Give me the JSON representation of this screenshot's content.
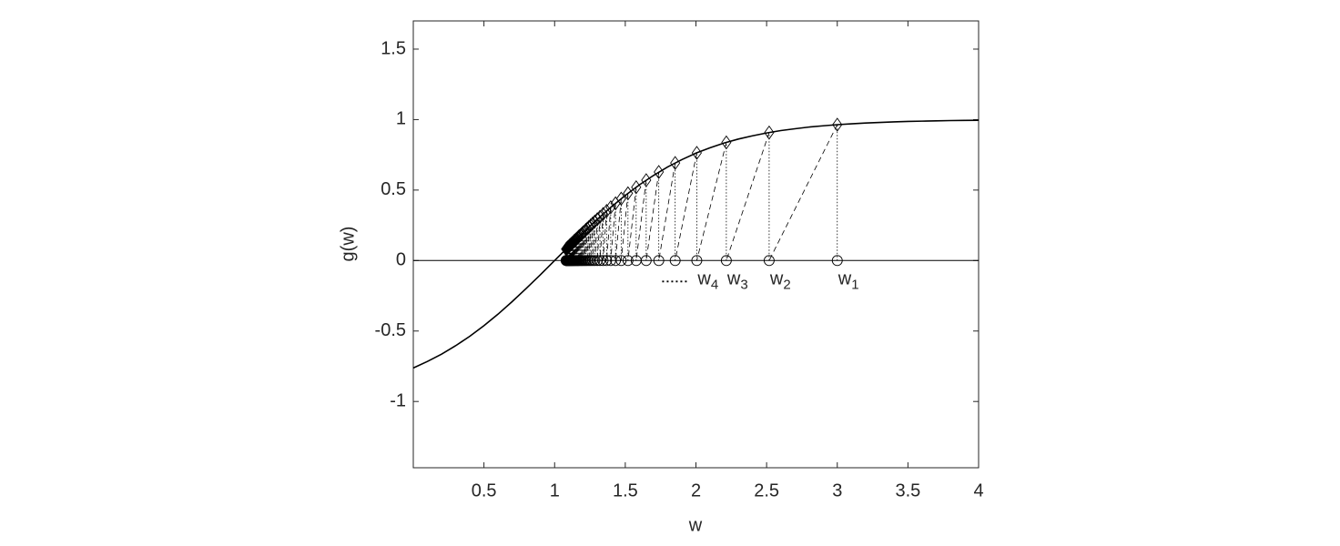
{
  "chart_data": {
    "type": "line",
    "xlabel": "w",
    "ylabel": "g(w)",
    "xlim": [
      0,
      4
    ],
    "ylim": [
      -1.47,
      1.7
    ],
    "xticks": [
      0.5,
      1,
      1.5,
      2,
      2.5,
      3,
      3.5,
      4
    ],
    "yticks": [
      -1,
      -0.5,
      0,
      0.5,
      1,
      1.5
    ],
    "hline": 0,
    "color": "#000000",
    "curve": {
      "x": [
        0,
        0.1,
        0.2,
        0.3,
        0.4,
        0.5,
        0.6,
        0.7,
        0.8,
        0.9,
        1,
        1.1,
        1.2,
        1.3,
        1.4,
        1.5,
        1.6,
        1.7,
        1.8,
        1.9,
        2,
        2.1,
        2.2,
        2.3,
        2.4,
        2.5,
        2.6,
        2.7,
        2.8,
        2.9,
        3,
        3.1,
        3.2,
        3.3,
        3.4,
        3.5,
        3.6,
        3.7,
        3.8,
        3.9,
        4
      ],
      "y": [
        -0.762,
        -0.716,
        -0.664,
        -0.604,
        -0.537,
        -0.462,
        -0.38,
        -0.291,
        -0.197,
        -0.1,
        0,
        0.1,
        0.197,
        0.291,
        0.38,
        0.462,
        0.537,
        0.604,
        0.664,
        0.716,
        0.762,
        0.8,
        0.834,
        0.862,
        0.885,
        0.905,
        0.922,
        0.935,
        0.947,
        0.956,
        0.964,
        0.97,
        0.976,
        0.98,
        0.984,
        0.987,
        0.989,
        0.991,
        0.993,
        0.994,
        0.995
      ]
    },
    "iterates": {
      "x": [
        3,
        2.518,
        2.215,
        2.006,
        1.853,
        1.737,
        1.648,
        1.577,
        1.519,
        1.471,
        1.431,
        1.397,
        1.368,
        1.343,
        1.321,
        1.302,
        1.284,
        1.269,
        1.255,
        1.243,
        1.231,
        1.221,
        1.212,
        1.203,
        1.195,
        1.188,
        1.181,
        1.174,
        1.168,
        1.163,
        1.157,
        1.153,
        1.148,
        1.144,
        1.139,
        1.136,
        1.132,
        1.128,
        1.125,
        1.122,
        1.119,
        1.116,
        1.114,
        1.111,
        1.108,
        1.106,
        1.104,
        1.102,
        1.1,
        1.098,
        1.096,
        1.094,
        1.092,
        1.09,
        1.089,
        1.087,
        1.086,
        1.084,
        1.083,
        1.081
      ],
      "g": [
        0.964,
        0.908,
        0.838,
        0.764,
        0.692,
        0.628,
        0.57,
        0.52,
        0.477,
        0.439,
        0.406,
        0.378,
        0.352,
        0.33,
        0.31,
        0.293,
        0.277,
        0.263,
        0.25,
        0.238,
        0.227,
        0.218,
        0.208,
        0.2,
        0.193,
        0.185,
        0.179,
        0.173,
        0.167,
        0.161,
        0.156,
        0.151,
        0.147,
        0.143,
        0.139,
        0.135,
        0.131,
        0.128,
        0.124,
        0.121,
        0.118,
        0.116,
        0.113,
        0.11,
        0.108,
        0.106,
        0.103,
        0.101,
        0.099,
        0.097,
        0.095,
        0.094,
        0.092,
        0.09,
        0.088,
        0.087,
        0.085,
        0.084,
        0.082,
        0.081
      ]
    },
    "annotations": [
      {
        "label": "w",
        "subscript": "1"
      },
      {
        "label": "w",
        "subscript": "2"
      },
      {
        "label": "w",
        "subscript": "3"
      },
      {
        "label": "w",
        "subscript": "4"
      }
    ]
  }
}
